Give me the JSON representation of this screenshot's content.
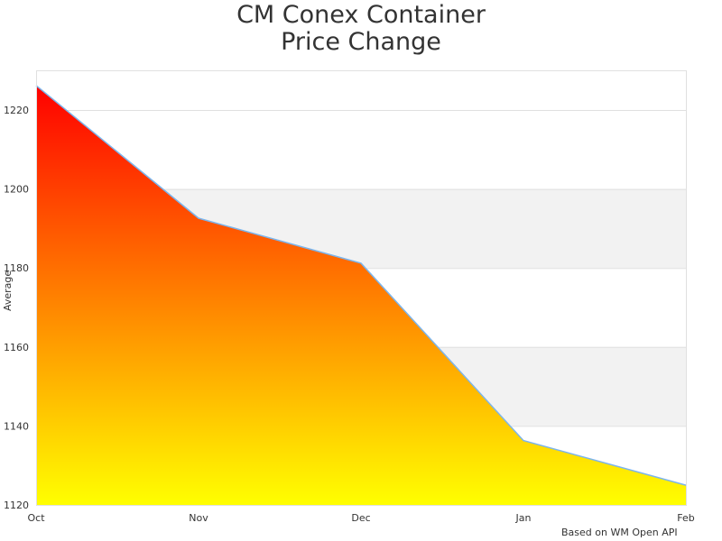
{
  "chart_data": {
    "type": "area",
    "title_line1": "CM Conex Container",
    "title_line2": "Price Change",
    "xlabel": "",
    "ylabel": "Average",
    "categories": [
      "Oct",
      "Nov",
      "Dec",
      "Jan",
      "Feb"
    ],
    "values": [
      1226.2,
      1192.6,
      1181.2,
      1136.3,
      1125.0
    ],
    "ylim": [
      1120,
      1230
    ],
    "yticks": [
      1120,
      1140,
      1160,
      1180,
      1200,
      1220
    ],
    "grid": true,
    "alternate_bands": true,
    "legend": "none",
    "colors": {
      "fill_top": "#ff0000",
      "fill_bottom": "#ffff00",
      "line": "#7cb5ec",
      "band": "#f2f2f2",
      "grid": "#e0e0e0"
    }
  },
  "credit": "Based on WM Open API"
}
